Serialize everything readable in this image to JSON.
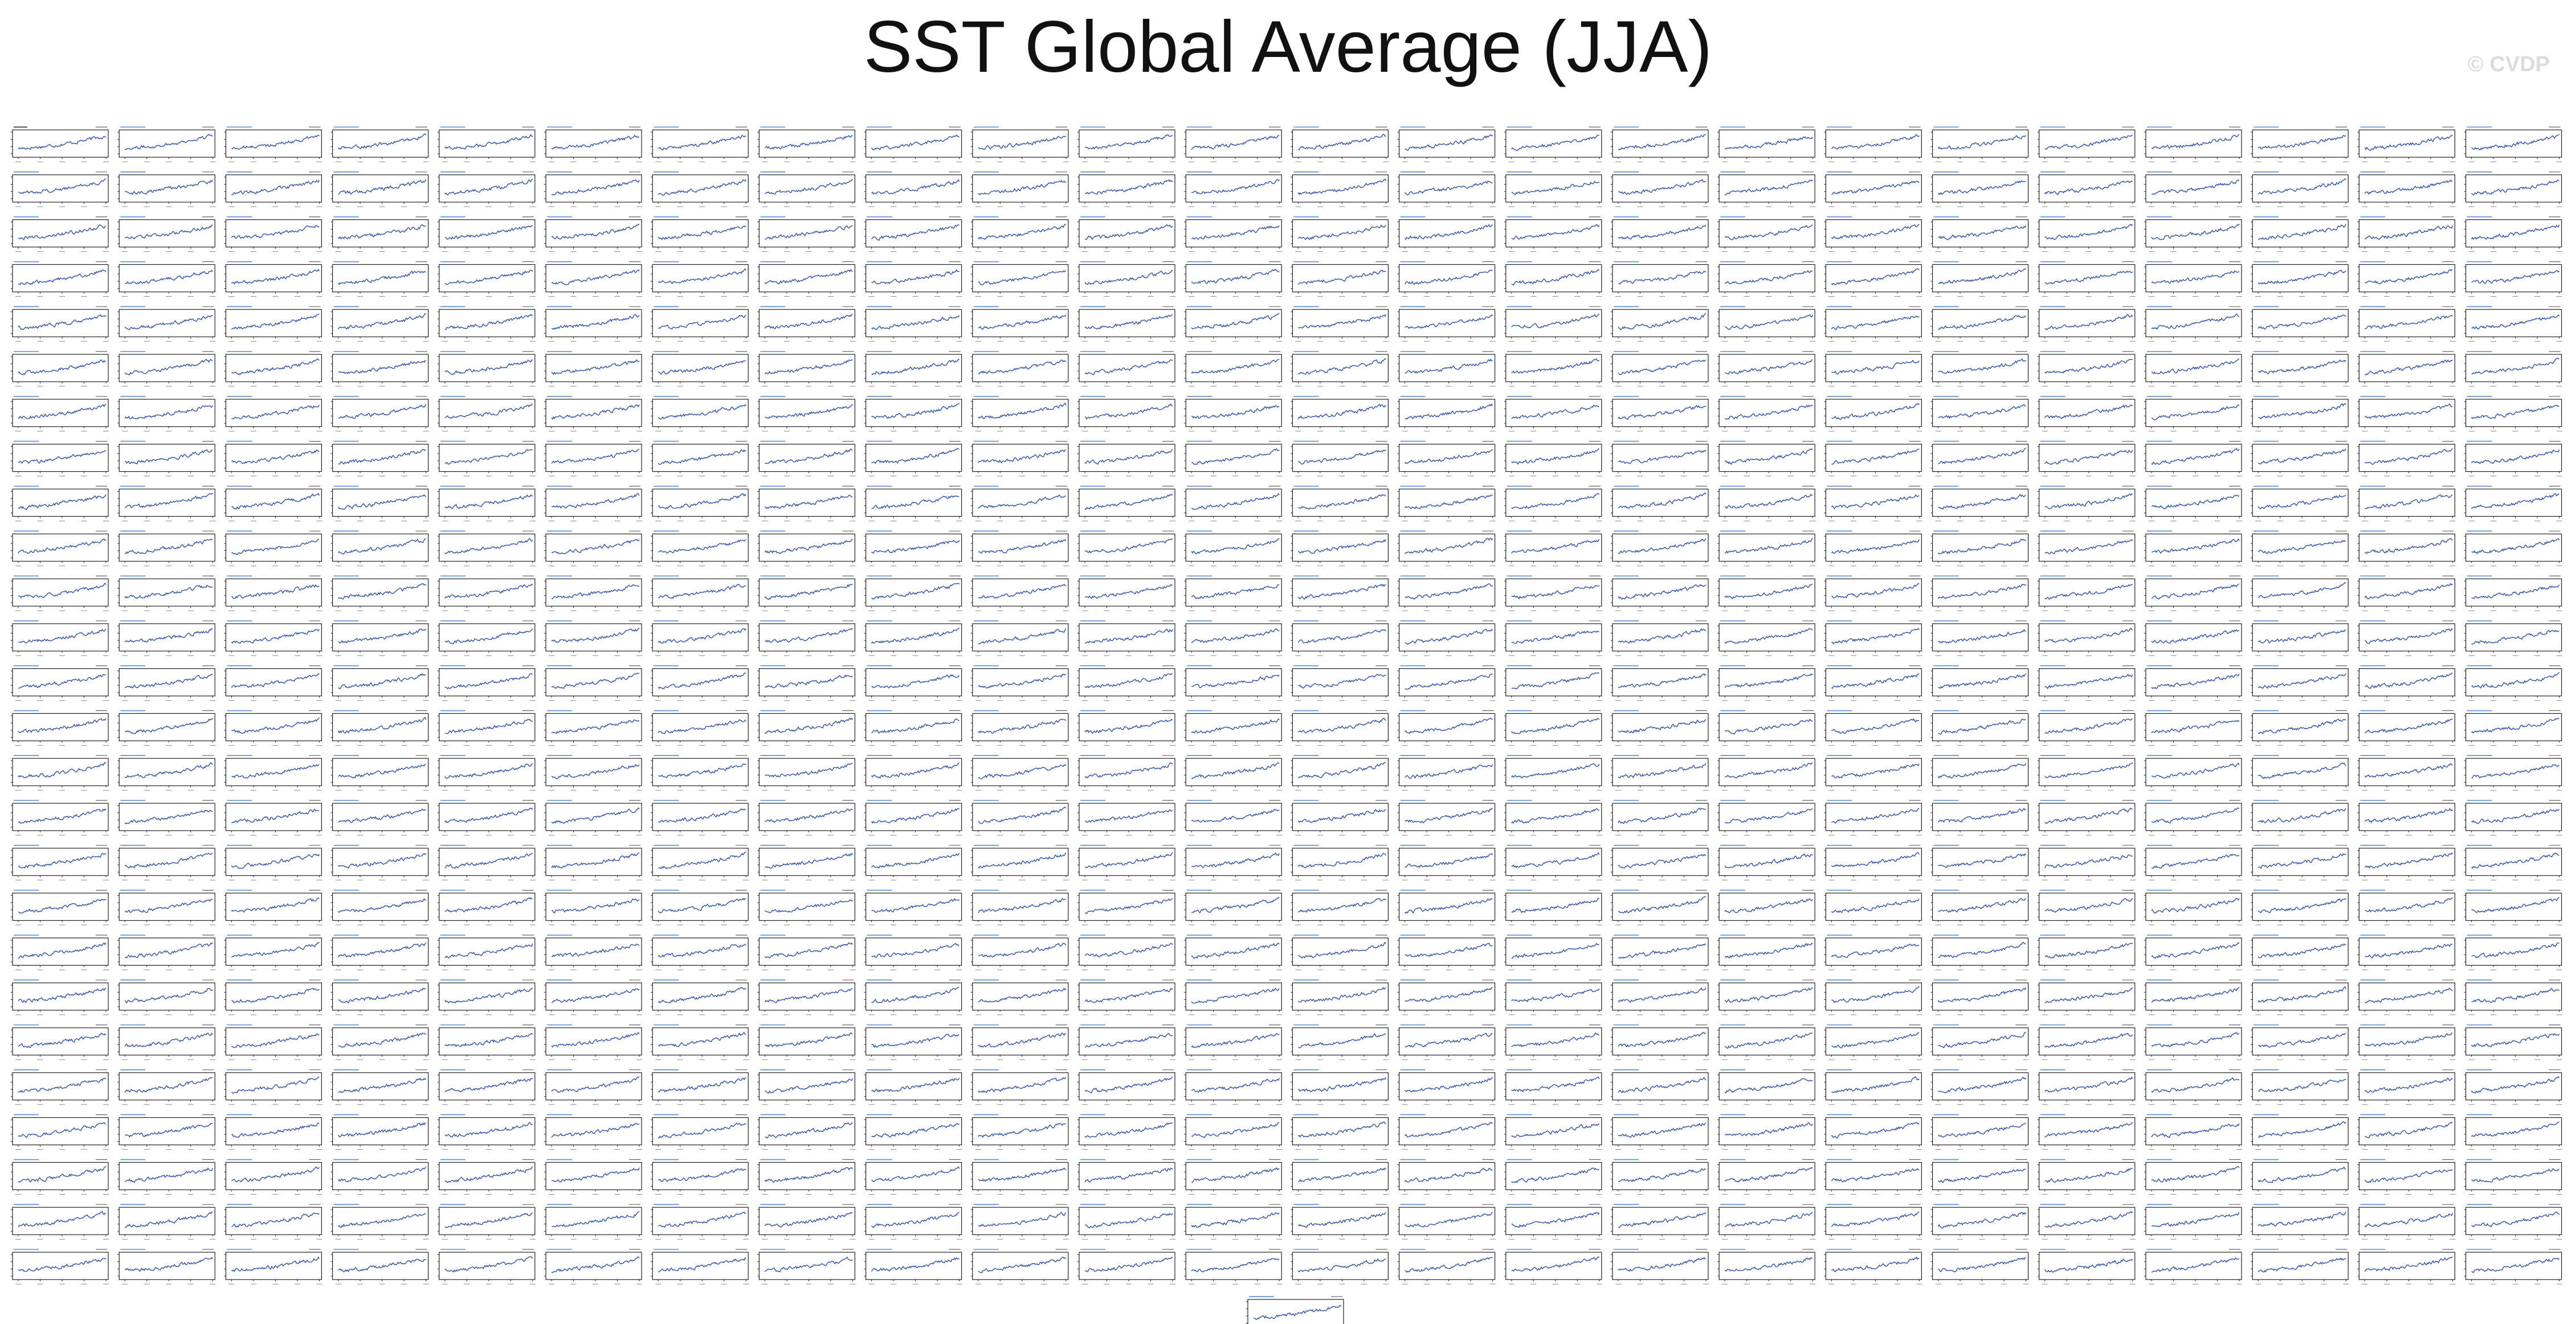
{
  "title": "SST Global Average (JJA)",
  "watermark": "© CVDP",
  "colors": {
    "series": "#2f52b0",
    "axis": "#222222",
    "panel_title": "#5a8fd6",
    "panel_title_obs": "#222222",
    "background": "#ffffff"
  },
  "chart_data": {
    "type": "line",
    "layout": "small-multiples",
    "grid": false,
    "rows": 26,
    "cols": 24,
    "extra_bottom_panels": 1,
    "panel_count": 625,
    "x": {
      "start": 1920,
      "end": 2014,
      "step": 1
    },
    "ylim": [
      -0.6,
      0.6
    ],
    "series_shape": "noisy upward trend; anomalies rise from about -0.3 to +0.4 across each panel",
    "trend": {
      "start_value": -0.3,
      "end_value": 0.4,
      "noise_amplitude": 0.08
    }
  }
}
